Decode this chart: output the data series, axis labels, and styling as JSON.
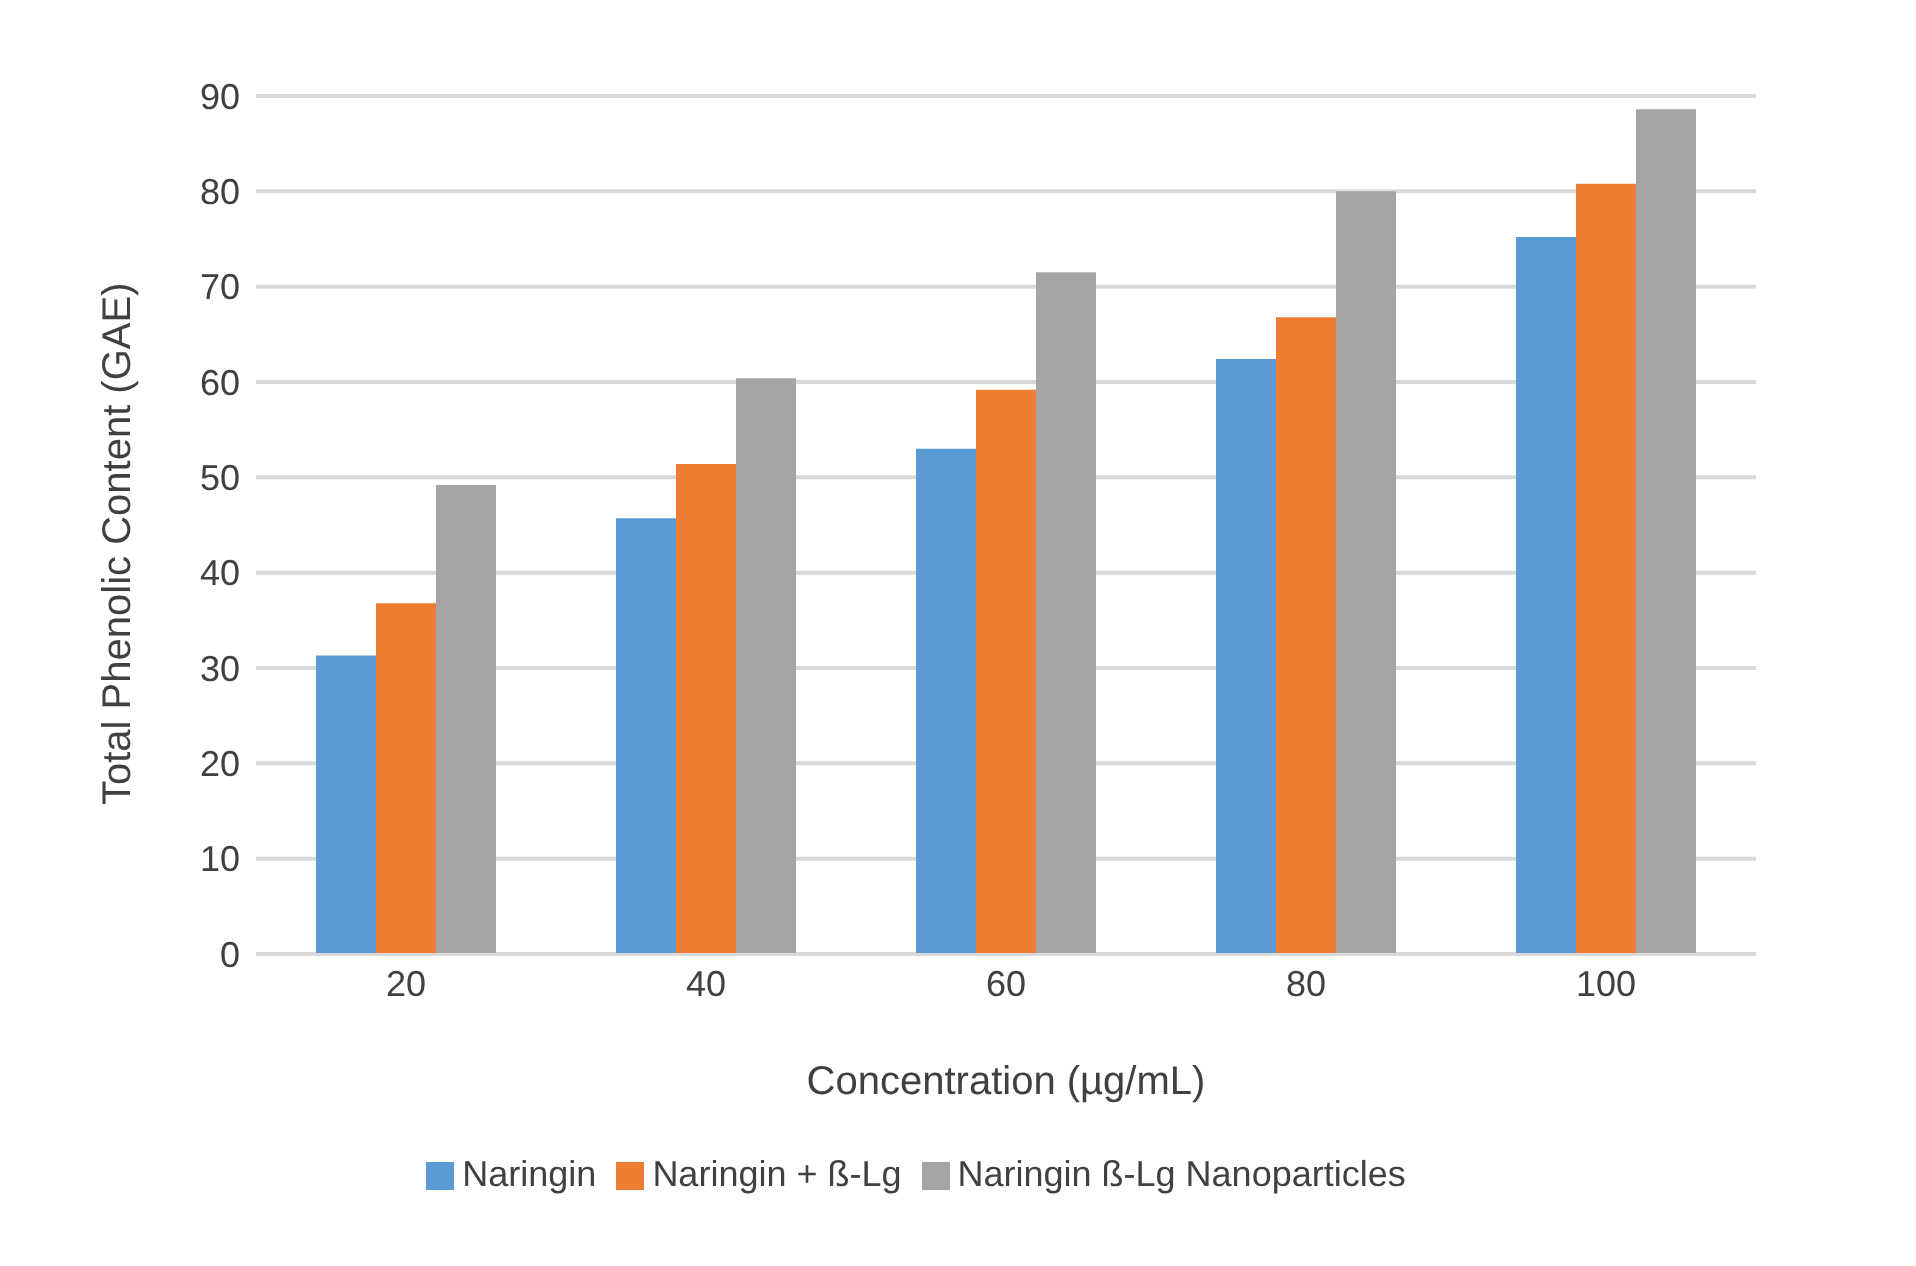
{
  "chart_data": {
    "type": "bar",
    "xlabel": "Concentration (µg/mL)",
    "ylabel": "Total Phenolic Content (GAE)",
    "categories": [
      "20",
      "40",
      "60",
      "80",
      "100"
    ],
    "series": [
      {
        "name": "Naringin",
        "color": "#5b9bd5",
        "values": [
          31.3,
          45.7,
          53.0,
          62.4,
          75.2
        ]
      },
      {
        "name": "Naringin + ß-Lg",
        "color": "#ed7d31",
        "values": [
          36.8,
          51.4,
          59.2,
          66.8,
          80.8
        ]
      },
      {
        "name": "Naringin ß-Lg Nanoparticles",
        "color": "#a5a5a5",
        "values": [
          49.2,
          60.4,
          71.5,
          80.0,
          88.6
        ]
      }
    ],
    "ylim": [
      0,
      90
    ],
    "yticks": [
      0,
      10,
      20,
      30,
      40,
      50,
      60,
      70,
      80,
      90
    ],
    "grid": "y",
    "legend": "bottom"
  }
}
